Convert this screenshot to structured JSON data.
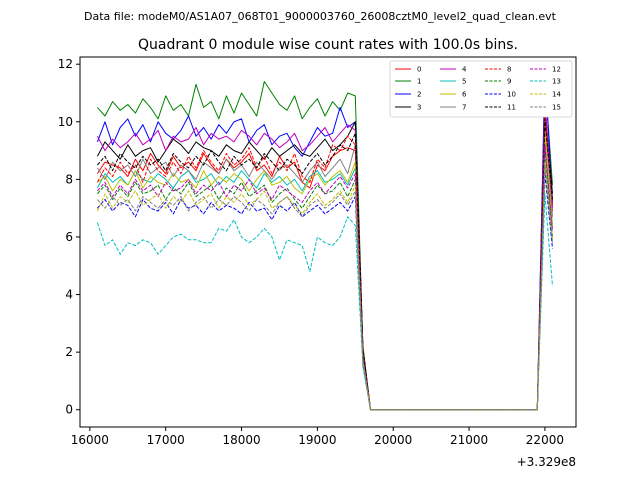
{
  "suptitle": "Data file: modeM0/AS1A07_068T01_9000003760_26008cztM0_level2_quad_clean.evt",
  "chart_data": {
    "type": "line",
    "title": "Quadrant 0 module wise count rates with 100.0s bins.",
    "xlabel": "",
    "ylabel": "",
    "x_offset_label": "+3.329e8",
    "xlim": [
      15870,
      22410
    ],
    "ylim": [
      -0.6,
      12.25
    ],
    "x_ticks": [
      16000,
      17000,
      18000,
      19000,
      20000,
      21000,
      22000
    ],
    "x_tick_labels": [
      "16000",
      "17000",
      "18000",
      "19000",
      "20000",
      "21000",
      "22000"
    ],
    "y_ticks": [
      0,
      2,
      4,
      6,
      8,
      10,
      12
    ],
    "y_tick_labels": [
      "0",
      "2",
      "4",
      "6",
      "8",
      "10",
      "12"
    ],
    "grid": false,
    "legend_position": "top-right",
    "x": [
      16100,
      16200,
      16300,
      16400,
      16500,
      16600,
      16700,
      16800,
      16900,
      17000,
      17100,
      17200,
      17300,
      17400,
      17500,
      17600,
      17700,
      17800,
      17900,
      18000,
      18100,
      18200,
      18300,
      18400,
      18500,
      18600,
      18700,
      18800,
      18900,
      19000,
      19100,
      19200,
      19300,
      19400,
      19500,
      19600,
      19700,
      19800,
      19900,
      20000,
      20100,
      20200,
      20300,
      20400,
      20500,
      20600,
      20700,
      20800,
      20900,
      21000,
      21100,
      21200,
      21300,
      21400,
      21500,
      21600,
      21700,
      21800,
      21900,
      22000,
      22100
    ],
    "series": [
      {
        "name": "0",
        "color": "#ff0000",
        "dash": "solid",
        "values": [
          8.2,
          8.6,
          8.5,
          8.4,
          8.1,
          8.7,
          8.3,
          8.9,
          8.5,
          8.2,
          8.8,
          8.4,
          8.6,
          8.3,
          8.9,
          8.5,
          8.2,
          8.7,
          8.4,
          8.6,
          8.9,
          8.3,
          8.5,
          8.1,
          8.8,
          8.4,
          8.6,
          7.9,
          7.7,
          8.5,
          8.3,
          8.8,
          9.0,
          9.1,
          9.0,
          2.0,
          0,
          0,
          0,
          0,
          0,
          0,
          0,
          0,
          0,
          0,
          0,
          0,
          0,
          0,
          0,
          0,
          0,
          0,
          0,
          0,
          0,
          0,
          0,
          10.0,
          6.9
        ]
      },
      {
        "name": "1",
        "color": "#008000",
        "dash": "solid",
        "values": [
          10.5,
          10.2,
          10.7,
          10.4,
          10.6,
          10.3,
          10.8,
          10.5,
          10.1,
          10.9,
          10.4,
          10.6,
          10.2,
          11.3,
          10.5,
          10.7,
          10.1,
          10.9,
          10.3,
          11.0,
          10.6,
          10.2,
          11.4,
          11.0,
          10.6,
          10.4,
          10.9,
          10.1,
          10.5,
          10.8,
          10.2,
          10.7,
          10.4,
          11.0,
          10.9,
          2.1,
          0,
          0,
          0,
          0,
          0,
          0,
          0,
          0,
          0,
          0,
          0,
          0,
          0,
          0,
          0,
          0,
          0,
          0,
          0,
          0,
          0,
          0,
          0,
          11.5,
          7.8
        ]
      },
      {
        "name": "2",
        "color": "#0000ff",
        "dash": "solid",
        "values": [
          9.3,
          10.0,
          9.2,
          9.8,
          10.1,
          9.5,
          9.9,
          9.3,
          10.0,
          9.6,
          9.4,
          9.7,
          10.2,
          9.5,
          9.8,
          9.4,
          9.9,
          9.6,
          10.0,
          10.1,
          9.3,
          9.7,
          9.9,
          9.2,
          9.5,
          9.6,
          9.1,
          8.8,
          9.3,
          9.8,
          9.5,
          9.6,
          10.5,
          9.8,
          10.0,
          1.9,
          0,
          0,
          0,
          0,
          0,
          0,
          0,
          0,
          0,
          0,
          0,
          0,
          0,
          0,
          0,
          0,
          0,
          0,
          0,
          0,
          0,
          0,
          0,
          11.8,
          7.2
        ]
      },
      {
        "name": "3",
        "color": "#000000",
        "dash": "solid",
        "values": [
          8.8,
          9.3,
          9.0,
          8.7,
          9.2,
          8.8,
          9.0,
          9.1,
          8.6,
          9.0,
          9.4,
          9.2,
          8.9,
          9.3,
          9.1,
          9.0,
          8.8,
          9.2,
          9.0,
          8.9,
          9.3,
          9.0,
          8.7,
          9.1,
          8.8,
          9.0,
          9.2,
          8.9,
          8.8,
          9.1,
          9.4,
          9.0,
          9.2,
          9.5,
          10.0,
          2.2,
          0,
          0,
          0,
          0,
          0,
          0,
          0,
          0,
          0,
          0,
          0,
          0,
          0,
          0,
          0,
          0,
          0,
          0,
          0,
          0,
          0,
          0,
          0,
          10.5,
          7.5
        ]
      },
      {
        "name": "4",
        "color": "#bf00bf",
        "dash": "solid",
        "values": [
          9.5,
          9.0,
          9.4,
          9.1,
          9.3,
          9.6,
          9.2,
          9.4,
          9.7,
          9.0,
          9.5,
          9.3,
          9.4,
          9.8,
          9.2,
          9.6,
          9.4,
          9.5,
          9.3,
          9.7,
          9.5,
          9.2,
          9.6,
          9.4,
          9.1,
          9.3,
          9.6,
          9.0,
          9.2,
          9.5,
          9.8,
          9.3,
          9.6,
          9.9,
          9.7,
          2.0,
          0,
          0,
          0,
          0,
          0,
          0,
          0,
          0,
          0,
          0,
          0,
          0,
          0,
          0,
          0,
          0,
          0,
          0,
          0,
          0,
          0,
          0,
          0,
          10.8,
          7.0
        ]
      },
      {
        "name": "5",
        "color": "#00bfbf",
        "dash": "solid",
        "values": [
          7.7,
          8.2,
          7.9,
          8.1,
          7.8,
          8.3,
          8.0,
          7.9,
          8.2,
          8.0,
          7.7,
          8.1,
          8.3,
          7.9,
          8.0,
          8.2,
          7.8,
          8.1,
          7.9,
          8.3,
          8.0,
          7.7,
          8.2,
          7.9,
          8.1,
          7.8,
          8.0,
          7.6,
          8.1,
          8.3,
          7.9,
          8.0,
          8.2,
          7.8,
          8.4,
          1.8,
          0,
          0,
          0,
          0,
          0,
          0,
          0,
          0,
          0,
          0,
          0,
          0,
          0,
          0,
          0,
          0,
          0,
          0,
          0,
          0,
          0,
          0,
          0,
          9.4,
          6.4
        ]
      },
      {
        "name": "6",
        "color": "#bfbf00",
        "dash": "solid",
        "values": [
          7.9,
          8.1,
          7.6,
          8.0,
          7.8,
          8.3,
          7.7,
          8.1,
          7.9,
          7.8,
          8.2,
          7.9,
          8.0,
          7.7,
          8.3,
          7.8,
          8.1,
          7.9,
          8.2,
          8.0,
          7.6,
          8.0,
          8.3,
          7.8,
          7.9,
          8.1,
          7.7,
          7.5,
          8.0,
          8.2,
          7.8,
          8.1,
          8.3,
          7.9,
          8.6,
          1.9,
          0,
          0,
          0,
          0,
          0,
          0,
          0,
          0,
          0,
          0,
          0,
          0,
          0,
          0,
          0,
          0,
          0,
          0,
          0,
          0,
          0,
          0,
          0,
          9.6,
          6.3
        ]
      },
      {
        "name": "7",
        "color": "#808080",
        "dash": "solid",
        "values": [
          8.4,
          8.0,
          8.6,
          8.3,
          8.5,
          8.1,
          8.7,
          8.2,
          8.4,
          8.6,
          8.1,
          8.5,
          8.3,
          8.0,
          8.6,
          8.4,
          8.2,
          8.7,
          8.3,
          8.5,
          8.1,
          8.6,
          8.3,
          8.0,
          8.4,
          8.5,
          8.2,
          7.9,
          8.3,
          8.6,
          8.1,
          8.4,
          8.7,
          8.2,
          9.2,
          2.0,
          0,
          0,
          0,
          0,
          0,
          0,
          0,
          0,
          0,
          0,
          0,
          0,
          0,
          0,
          0,
          0,
          0,
          0,
          0,
          0,
          0,
          0,
          0,
          10.2,
          6.7
        ]
      },
      {
        "name": "8",
        "color": "#ff0000",
        "dash": "dashed",
        "values": [
          7.9,
          8.4,
          8.1,
          8.6,
          8.2,
          8.5,
          7.9,
          8.7,
          8.3,
          8.1,
          8.6,
          8.2,
          8.8,
          8.4,
          9.0,
          8.6,
          8.3,
          8.9,
          8.5,
          8.7,
          9.1,
          8.4,
          8.8,
          8.2,
          8.6,
          8.3,
          8.9,
          8.1,
          7.9,
          8.7,
          8.4,
          9.2,
          9.0,
          9.5,
          9.2,
          2.0,
          0,
          0,
          0,
          0,
          0,
          0,
          0,
          0,
          0,
          0,
          0,
          0,
          0,
          0,
          0,
          0,
          0,
          0,
          0,
          0,
          0,
          0,
          0,
          10.3,
          7.1
        ]
      },
      {
        "name": "9",
        "color": "#008000",
        "dash": "dashed",
        "values": [
          7.5,
          7.8,
          7.3,
          7.7,
          7.4,
          7.9,
          7.5,
          7.6,
          7.8,
          7.3,
          7.7,
          7.5,
          7.9,
          7.4,
          7.6,
          7.8,
          7.3,
          7.7,
          7.5,
          7.9,
          7.4,
          7.6,
          7.8,
          7.2,
          7.5,
          7.7,
          7.3,
          7.0,
          7.4,
          7.8,
          7.5,
          7.6,
          7.9,
          7.4,
          8.0,
          1.8,
          0,
          0,
          0,
          0,
          0,
          0,
          0,
          0,
          0,
          0,
          0,
          0,
          0,
          0,
          0,
          0,
          0,
          0,
          0,
          0,
          0,
          0,
          0,
          9.0,
          6.0
        ]
      },
      {
        "name": "10",
        "color": "#0000ff",
        "dash": "dashed",
        "values": [
          7.0,
          7.3,
          6.9,
          7.2,
          7.1,
          6.7,
          7.3,
          7.0,
          6.9,
          7.2,
          6.8,
          7.3,
          7.0,
          7.1,
          6.8,
          7.2,
          6.9,
          7.1,
          7.0,
          6.8,
          7.2,
          6.9,
          7.0,
          6.6,
          7.1,
          6.9,
          7.2,
          6.7,
          6.9,
          7.1,
          6.8,
          7.0,
          7.2,
          6.9,
          7.4,
          1.6,
          0,
          0,
          0,
          0,
          0,
          0,
          0,
          0,
          0,
          0,
          0,
          0,
          0,
          0,
          0,
          0,
          0,
          0,
          0,
          0,
          0,
          0,
          0,
          8.2,
          5.6
        ]
      },
      {
        "name": "11",
        "color": "#000000",
        "dash": "dashed",
        "values": [
          8.5,
          8.8,
          8.3,
          8.9,
          8.6,
          8.4,
          8.8,
          8.5,
          8.7,
          8.3,
          8.9,
          8.6,
          8.4,
          8.8,
          8.5,
          9.0,
          8.6,
          8.3,
          8.8,
          8.5,
          8.7,
          8.4,
          8.9,
          8.6,
          8.3,
          8.7,
          8.5,
          8.2,
          8.6,
          8.9,
          8.5,
          8.8,
          9.2,
          9.0,
          9.6,
          2.1,
          0,
          0,
          0,
          0,
          0,
          0,
          0,
          0,
          0,
          0,
          0,
          0,
          0,
          0,
          0,
          0,
          0,
          0,
          0,
          0,
          0,
          0,
          0,
          10.1,
          7.3
        ]
      },
      {
        "name": "12",
        "color": "#bf00bf",
        "dash": "dashed",
        "values": [
          7.6,
          7.9,
          7.4,
          7.8,
          7.5,
          8.0,
          7.6,
          7.8,
          7.4,
          7.9,
          7.6,
          7.7,
          8.0,
          7.5,
          7.8,
          7.6,
          7.9,
          7.4,
          7.8,
          7.6,
          8.0,
          7.5,
          7.7,
          7.3,
          7.8,
          7.6,
          7.4,
          7.2,
          7.6,
          7.9,
          7.5,
          7.8,
          8.1,
          7.7,
          8.2,
          1.8,
          0,
          0,
          0,
          0,
          0,
          0,
          0,
          0,
          0,
          0,
          0,
          0,
          0,
          0,
          0,
          0,
          0,
          0,
          0,
          0,
          0,
          0,
          0,
          9.2,
          6.2
        ]
      },
      {
        "name": "13",
        "color": "#00bfbf",
        "dash": "dashed",
        "values": [
          6.5,
          5.7,
          5.9,
          5.4,
          5.8,
          5.7,
          5.9,
          5.8,
          5.4,
          5.7,
          6.0,
          6.1,
          5.9,
          5.9,
          5.8,
          5.8,
          6.3,
          6.2,
          6.6,
          6.0,
          5.8,
          6.0,
          6.3,
          6.0,
          5.2,
          5.9,
          5.8,
          5.7,
          4.8,
          6.0,
          5.8,
          5.7,
          6.0,
          6.7,
          6.4,
          1.5,
          0,
          0,
          0,
          0,
          0,
          0,
          0,
          0,
          0,
          0,
          0,
          0,
          0,
          0,
          0,
          0,
          0,
          0,
          0,
          0,
          0,
          0,
          0,
          7.5,
          4.3
        ]
      },
      {
        "name": "14",
        "color": "#bfbf00",
        "dash": "dashed",
        "values": [
          6.9,
          7.5,
          7.0,
          7.4,
          7.2,
          7.6,
          7.1,
          7.3,
          7.5,
          7.0,
          7.4,
          7.2,
          7.6,
          7.1,
          7.3,
          7.5,
          7.0,
          7.4,
          7.2,
          7.5,
          7.1,
          7.3,
          7.6,
          7.0,
          7.2,
          7.4,
          7.1,
          6.8,
          7.2,
          7.5,
          7.1,
          7.3,
          7.6,
          7.2,
          7.8,
          1.7,
          0,
          0,
          0,
          0,
          0,
          0,
          0,
          0,
          0,
          0,
          0,
          0,
          0,
          0,
          0,
          0,
          0,
          0,
          0,
          0,
          0,
          0,
          0,
          8.6,
          5.9
        ]
      },
      {
        "name": "15",
        "color": "#808080",
        "dash": "dashed",
        "values": [
          7.3,
          7.0,
          7.4,
          7.1,
          7.3,
          6.9,
          7.4,
          7.2,
          7.0,
          7.3,
          7.1,
          7.4,
          6.9,
          7.2,
          7.4,
          7.0,
          7.3,
          7.1,
          7.4,
          7.2,
          6.9,
          7.3,
          7.1,
          6.8,
          7.2,
          7.4,
          7.0,
          6.7,
          7.1,
          7.3,
          7.0,
          7.2,
          7.5,
          7.1,
          7.6,
          1.7,
          0,
          0,
          0,
          0,
          0,
          0,
          0,
          0,
          0,
          0,
          0,
          0,
          0,
          0,
          0,
          0,
          0,
          0,
          0,
          0,
          0,
          0,
          0,
          8.5,
          5.8
        ]
      }
    ]
  }
}
